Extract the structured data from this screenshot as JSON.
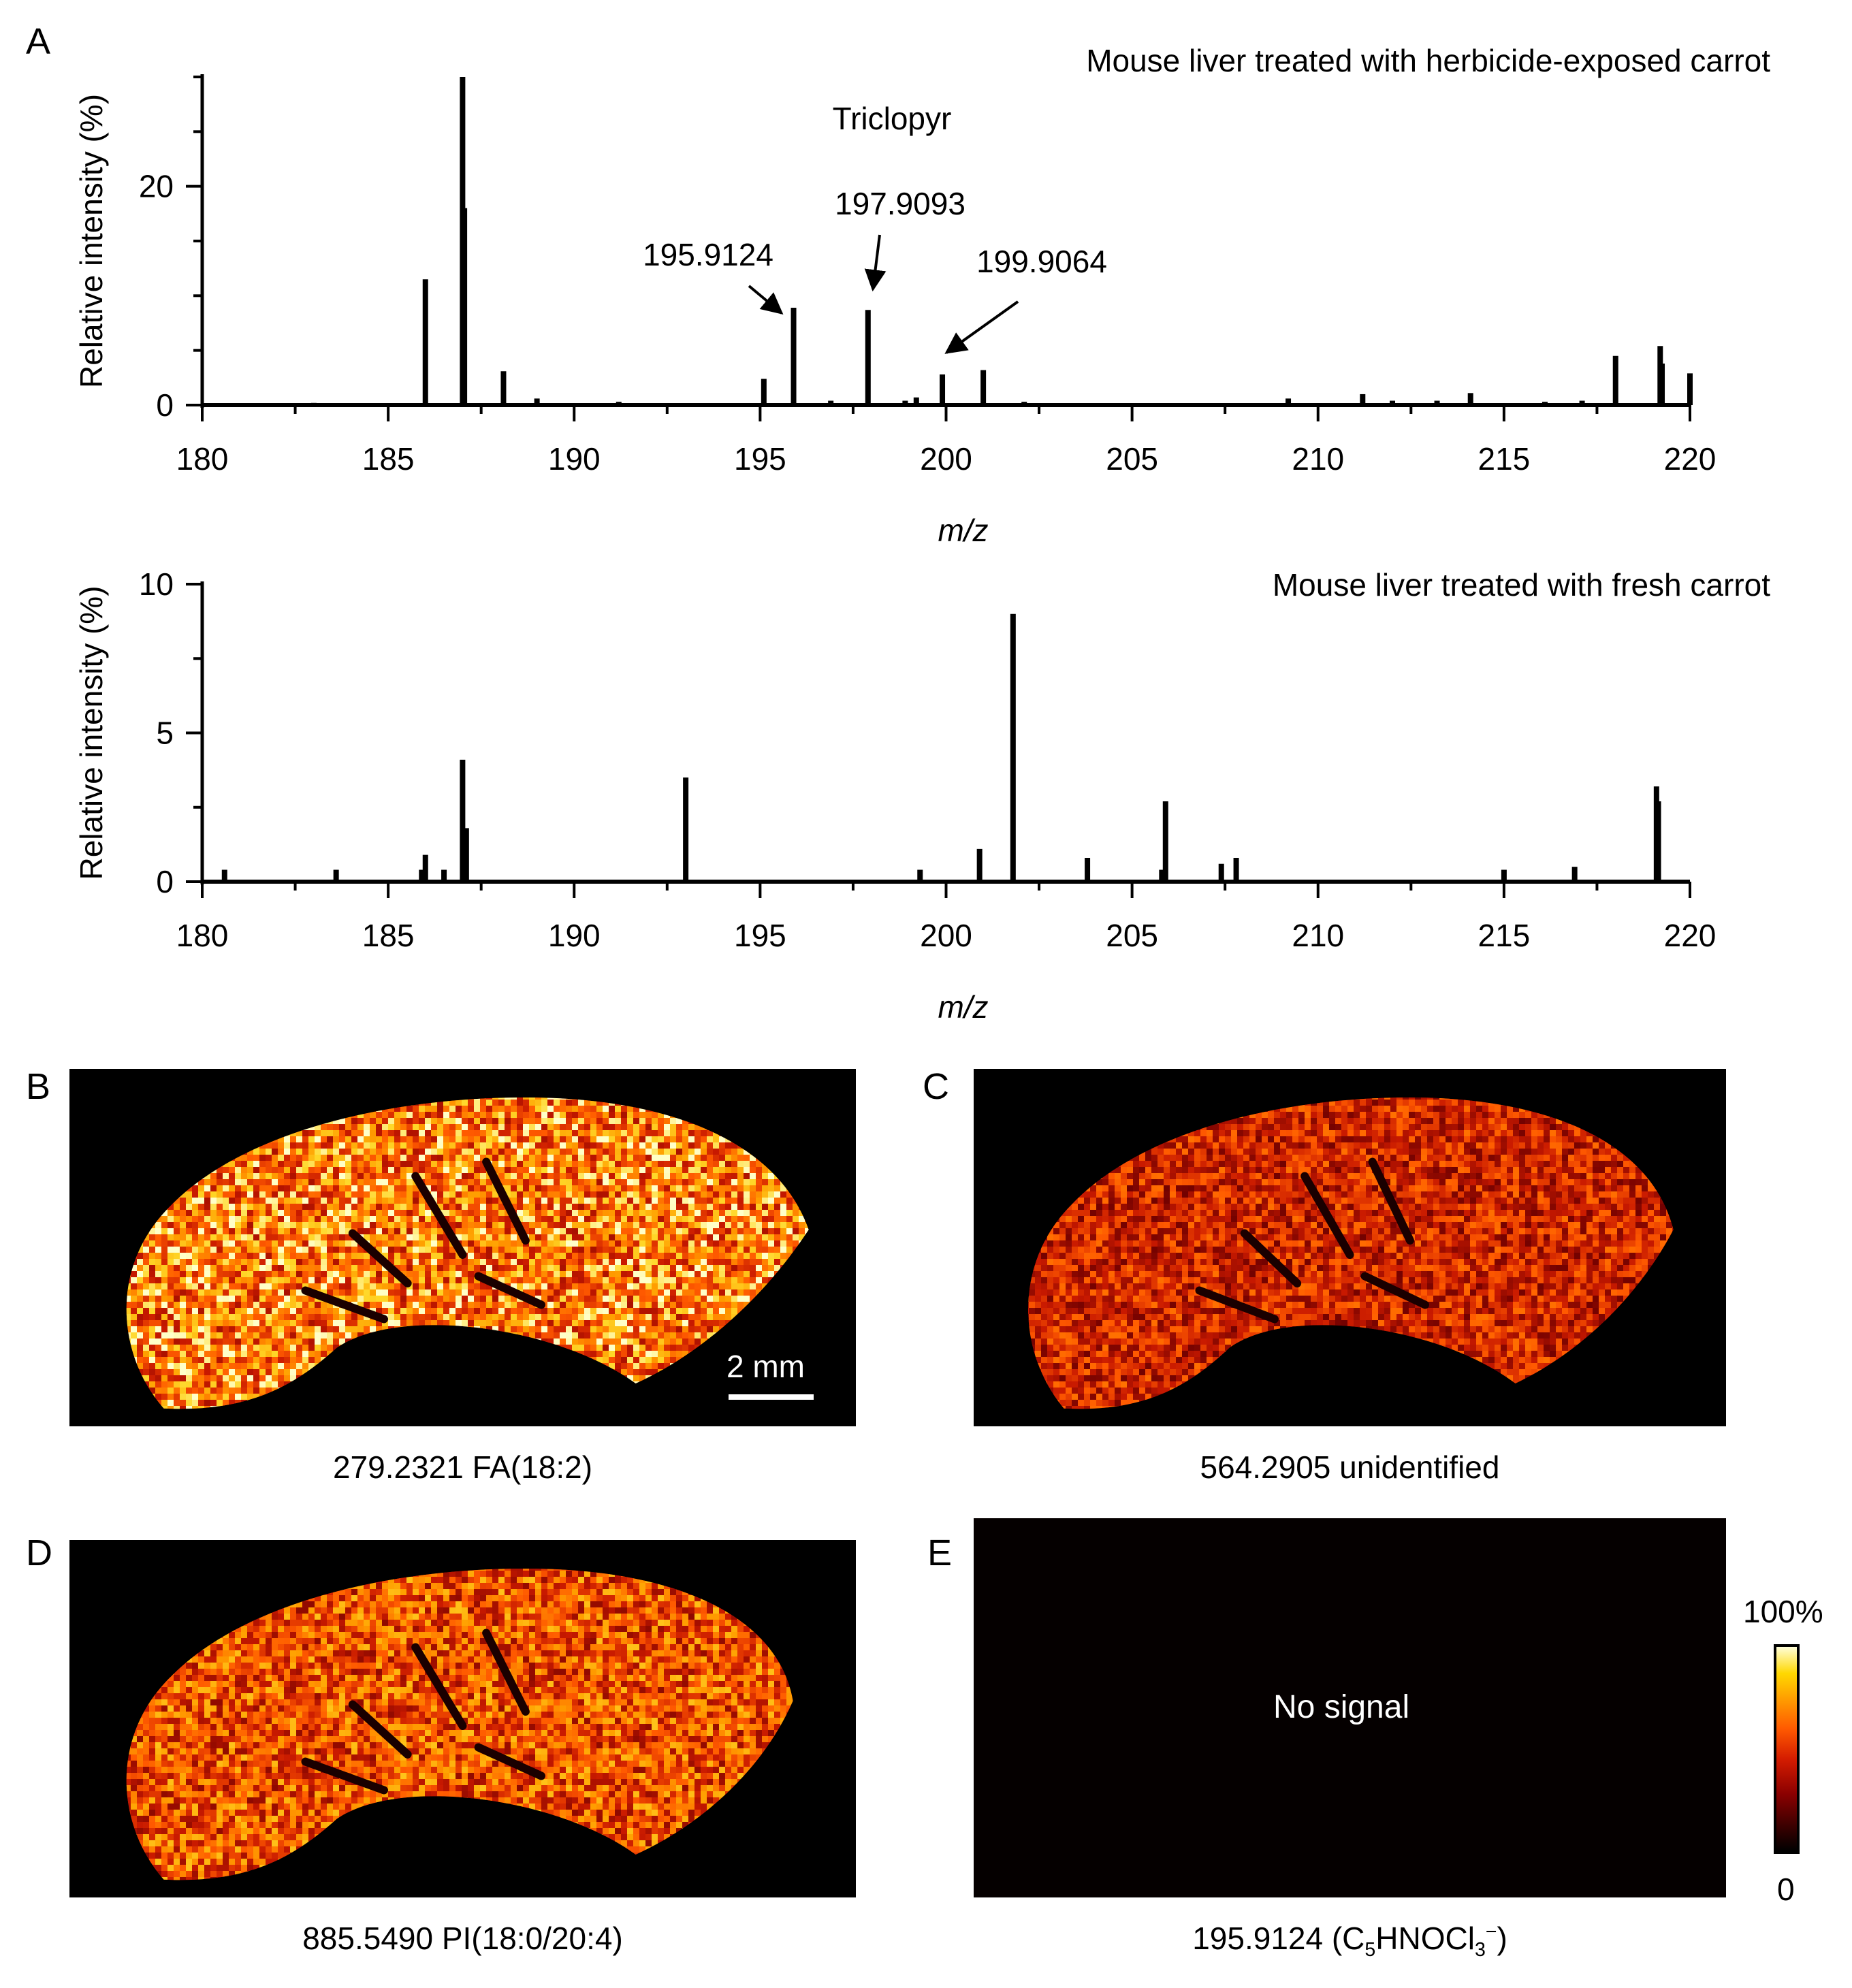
{
  "chart_data": [
    {
      "panel": "A",
      "type": "bar",
      "title": "Mouse liver treated with herbicide-exposed carrot",
      "xlabel": "m/z",
      "ylabel": "Relative intensity (%)",
      "xlim": [
        180,
        220
      ],
      "ylim": [
        0,
        30
      ],
      "xticks": [
        180,
        185,
        190,
        195,
        200,
        205,
        210,
        215,
        220
      ],
      "yticks": [
        0,
        20
      ],
      "annotation_group": "Triclopyr",
      "annotations": [
        "195.9124",
        "197.9093",
        "199.9064"
      ],
      "x": [
        183,
        186.0,
        187.0,
        187.05,
        188.1,
        189.0,
        191.2,
        195.1,
        195.9,
        196.9,
        197.9,
        198.9,
        199.2,
        199.9,
        201.0,
        202.1,
        209.2,
        211.2,
        212.0,
        213.2,
        214.1,
        216.1,
        217.1,
        218.0,
        219.2,
        219.25,
        220.0
      ],
      "values": [
        0.2,
        11.5,
        30.0,
        18.0,
        3.1,
        0.6,
        0.3,
        2.4,
        8.9,
        0.4,
        8.7,
        0.4,
        0.7,
        2.8,
        3.2,
        0.3,
        0.6,
        1.0,
        0.4,
        0.4,
        1.1,
        0.3,
        0.4,
        4.5,
        5.4,
        3.8,
        2.9
      ]
    },
    {
      "panel": "A",
      "type": "bar",
      "title": "Mouse liver treated with fresh carrot",
      "xlabel": "m/z",
      "ylabel": "Relative intensity (%)",
      "xlim": [
        180,
        220
      ],
      "ylim": [
        0,
        10
      ],
      "xticks": [
        180,
        185,
        190,
        195,
        200,
        205,
        210,
        215,
        220
      ],
      "yticks": [
        0,
        5,
        10
      ],
      "x": [
        180.6,
        183.6,
        185.9,
        186.0,
        186.5,
        187.0,
        187.1,
        193.0,
        199.3,
        200.9,
        201.8,
        203.8,
        205.8,
        205.9,
        207.4,
        207.8,
        215.0,
        216.9,
        219.1,
        219.15
      ],
      "values": [
        0.4,
        0.4,
        0.4,
        0.9,
        0.4,
        4.1,
        1.8,
        3.5,
        0.4,
        1.1,
        9.0,
        0.8,
        0.4,
        2.7,
        0.6,
        0.8,
        0.4,
        0.5,
        3.2,
        2.7
      ]
    }
  ],
  "panel_a": {
    "letter": "A",
    "top": {
      "title": "Mouse liver treated with herbicide-exposed carrot",
      "ylabel": "Relative intensity (%)",
      "xlabel": "m/z",
      "group_label": "Triclopyr",
      "peak1": "195.9124",
      "peak2": "197.9093",
      "peak3": "199.9064"
    },
    "bottom": {
      "title": "Mouse liver treated with fresh carrot",
      "ylabel": "Relative intensity (%)",
      "xlabel": "m/z"
    }
  },
  "images": {
    "b": {
      "letter": "B",
      "caption": "279.2321    FA(18:2)",
      "scale_bar": "2 mm"
    },
    "c": {
      "letter": "C",
      "caption": "564.2905 unidentified"
    },
    "d": {
      "letter": "D",
      "caption": "885.5490    PI(18:0/20:4)"
    },
    "e": {
      "letter": "E",
      "caption_mz": "195.9124 (C",
      "caption_sub1": "5",
      "caption_mid": "HNOCl",
      "caption_sub2": "3",
      "caption_sup": "−",
      "caption_end": ")",
      "overlay": "No signal"
    }
  },
  "colorbar": {
    "max_label": "100%",
    "min_label": "0"
  },
  "colors": {
    "ink": "#000000",
    "bar": "#000000",
    "image_bg": "#000000",
    "heat_hi": "#ffffd8",
    "heat_mid": "#ff5a00",
    "heat_lo": "#8b0000"
  }
}
